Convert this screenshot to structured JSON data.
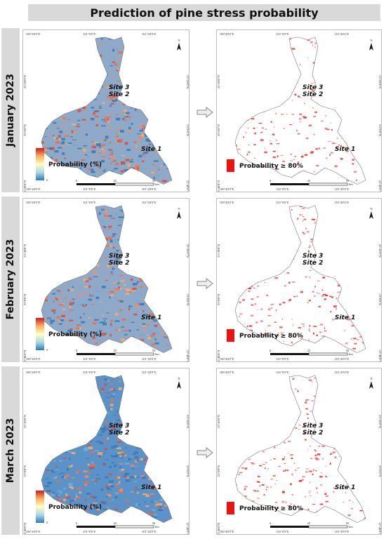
{
  "title": "Prediction of pine stress probability",
  "rows": [
    {
      "label": "January  2023"
    },
    {
      "label": "February  2023"
    },
    {
      "label": "March  2023"
    }
  ],
  "sites": [
    "Site 3",
    "Site 2",
    "Site 1"
  ],
  "legend": {
    "probability_label": "Probability (%)",
    "max_value": "100",
    "min_value": "0",
    "threshold_label": "Probability ≥ 80%"
  },
  "scale_bar": {
    "ticks": [
      "0",
      "25",
      "50"
    ],
    "unit": "km"
  },
  "longitudes": [
    "100°40'0\"E",
    "101°0'0\"E",
    "101°20'0\"E"
  ],
  "latitudes": [
    "23°20'0\"N",
    "23°0'0\"N",
    "22°40'0\"N"
  ],
  "north_label": "N",
  "colors": {
    "high": "#d7191c",
    "mid": "#ffffbf",
    "low": "#2c7bb6",
    "threshold": "#ee1111",
    "header_bg": "#d9d9d9"
  }
}
